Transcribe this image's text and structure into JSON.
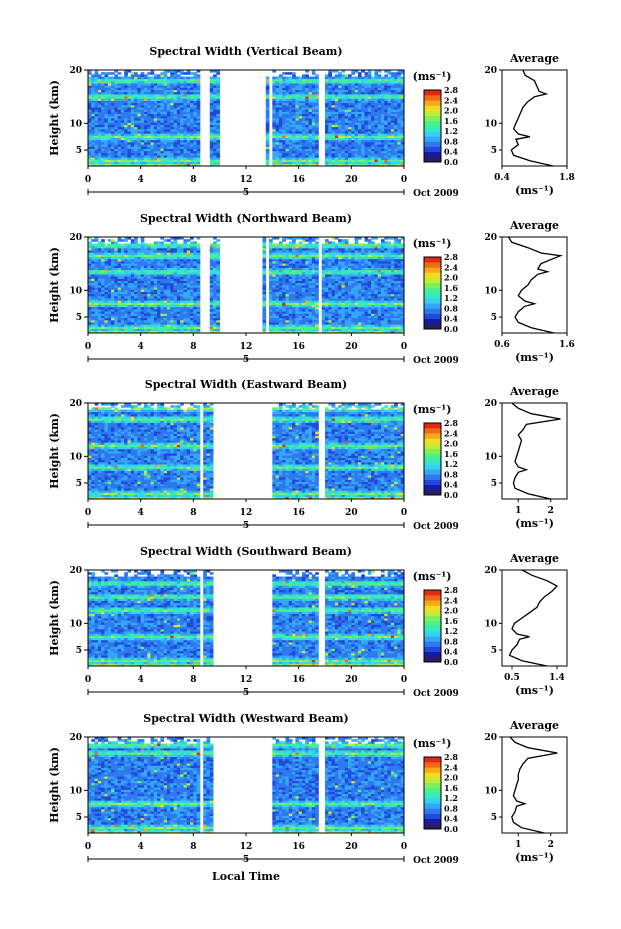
{
  "figure": {
    "colors": {
      "scale": [
        "#2a1f5c",
        "#1a1aa8",
        "#1f4ad8",
        "#2e78f0",
        "#34a8f6",
        "#35d2ee",
        "#37e8c0",
        "#4af090",
        "#7ef05a",
        "#c2ec3a",
        "#f0dc22",
        "#f8a818",
        "#f26a18",
        "#e02a14"
      ],
      "no_data": "#ffffff",
      "line": "#000000"
    },
    "x_axis": {
      "ticks": [
        "0",
        "4",
        "8",
        "12",
        "16",
        "20",
        "0"
      ],
      "day_label": "5",
      "date_label": "Oct 2009",
      "xlabel": "Local Time"
    },
    "colorbar": {
      "unit": "(ms⁻¹)",
      "ticks": [
        "2.8",
        "2.4",
        "2.0",
        "1.6",
        "1.2",
        "0.8",
        "0.4",
        "0.0"
      ]
    },
    "average": {
      "title": "Average",
      "xlabel": "(ms⁻¹)"
    }
  },
  "chart_data": [
    {
      "type": "heatmap",
      "title": "Spectral Width (Vertical Beam)",
      "ylabel": "Height (km)",
      "xlim": [
        0,
        24
      ],
      "ylim": [
        2,
        20
      ],
      "y_ticks": [
        "20",
        "10",
        "5"
      ],
      "missing_intervals_hours": [
        [
          8.6,
          9.3
        ],
        [
          10.1,
          13.5
        ],
        [
          13.7,
          14.1
        ],
        [
          17.6,
          17.9
        ]
      ],
      "enhanced_layers_km": [
        3.0,
        7.5,
        15.0,
        18.0
      ],
      "average_profile": {
        "title": "Average",
        "x_ticks": [
          "0.4",
          "1.8"
        ],
        "xlim": [
          0.4,
          1.8
        ],
        "ylim": [
          2,
          20
        ],
        "y_ticks": [
          "20",
          "10",
          "5"
        ],
        "height_km": [
          2,
          3,
          4,
          5,
          6,
          7,
          7.5,
          8,
          9,
          10,
          11,
          12,
          13,
          14,
          15,
          15.5,
          16,
          17,
          18,
          19,
          20
        ],
        "value": [
          1.5,
          1.0,
          0.65,
          0.6,
          0.75,
          0.7,
          1.0,
          0.75,
          0.65,
          0.7,
          0.75,
          0.8,
          0.85,
          0.95,
          1.1,
          1.35,
          1.2,
          1.15,
          1.1,
          0.9,
          0.85
        ]
      }
    },
    {
      "type": "heatmap",
      "title": "Spectral Width (Northward Beam)",
      "ylabel": "Height (km)",
      "xlim": [
        0,
        24
      ],
      "ylim": [
        2,
        20
      ],
      "y_ticks": [
        "20",
        "10",
        "5"
      ],
      "missing_intervals_hours": [
        [
          8.6,
          9.3
        ],
        [
          10.1,
          13.3
        ],
        [
          13.5,
          13.8
        ],
        [
          17.5,
          17.8
        ]
      ],
      "enhanced_layers_km": [
        3.0,
        7.5,
        13.5,
        16.5,
        18.5
      ],
      "average_profile": {
        "title": "Average",
        "x_ticks": [
          "0.6",
          "1.6"
        ],
        "xlim": [
          0.6,
          1.6
        ],
        "ylim": [
          2,
          20
        ],
        "y_ticks": [
          "20",
          "10",
          "5"
        ],
        "height_km": [
          2,
          3,
          4,
          5,
          6,
          7,
          7.5,
          8,
          9,
          10,
          11,
          12,
          13,
          13.5,
          14,
          15,
          16,
          16.5,
          17,
          18,
          19,
          20
        ],
        "value": [
          1.4,
          1.05,
          0.85,
          0.8,
          0.85,
          0.95,
          1.1,
          0.95,
          0.85,
          0.9,
          1.0,
          1.05,
          1.15,
          1.3,
          1.15,
          1.2,
          1.4,
          1.5,
          1.2,
          1.0,
          0.75,
          0.7
        ]
      }
    },
    {
      "type": "heatmap",
      "title": "Spectral Width (Eastward Beam)",
      "ylabel": "Height (km)",
      "xlim": [
        0,
        24
      ],
      "ylim": [
        2,
        20
      ],
      "y_ticks": [
        "20",
        "10",
        "5"
      ],
      "missing_intervals_hours": [
        [
          8.5,
          8.8
        ],
        [
          9.4,
          13.4
        ],
        [
          13.6,
          13.9
        ],
        [
          17.6,
          17.9
        ]
      ],
      "enhanced_layers_km": [
        3.0,
        8.0,
        12.0,
        17.0,
        19.0
      ],
      "average_profile": {
        "title": "Average",
        "x_ticks": [
          "1",
          "2"
        ],
        "xlim": [
          0.5,
          2.5
        ],
        "ylim": [
          2,
          20
        ],
        "y_ticks": [
          "20",
          "10",
          "5"
        ],
        "height_km": [
          2,
          3,
          4,
          5,
          6,
          7,
          7.5,
          8,
          9,
          10,
          11,
          12,
          13,
          14,
          15,
          16,
          17,
          18,
          19,
          20
        ],
        "value": [
          2.0,
          1.3,
          0.9,
          0.85,
          0.9,
          1.0,
          1.25,
          1.0,
          0.9,
          0.95,
          1.0,
          1.05,
          1.1,
          1.0,
          1.15,
          1.25,
          2.3,
          1.4,
          1.0,
          0.8
        ]
      }
    },
    {
      "type": "heatmap",
      "title": "Spectral Width (Southward Beam)",
      "ylabel": "Height (km)",
      "xlim": [
        0,
        24
      ],
      "ylim": [
        2,
        20
      ],
      "y_ticks": [
        "20",
        "10",
        "5"
      ],
      "missing_intervals_hours": [
        [
          8.5,
          8.8
        ],
        [
          9.4,
          13.4
        ],
        [
          13.6,
          13.9
        ],
        [
          17.6,
          17.9
        ]
      ],
      "enhanced_layers_km": [
        3.0,
        7.5,
        12.5,
        15.0,
        17.5
      ],
      "average_profile": {
        "title": "Average",
        "x_ticks": [
          "0.5",
          "1.4"
        ],
        "xlim": [
          0.3,
          1.6
        ],
        "ylim": [
          2,
          20
        ],
        "y_ticks": [
          "20",
          "10",
          "5"
        ],
        "height_km": [
          2,
          3,
          4,
          5,
          6,
          7,
          7.5,
          8,
          9,
          10,
          11,
          12,
          13,
          14,
          15,
          16,
          17,
          18,
          19,
          20
        ],
        "value": [
          1.2,
          0.7,
          0.45,
          0.5,
          0.6,
          0.65,
          0.85,
          0.6,
          0.5,
          0.55,
          0.7,
          0.85,
          1.0,
          1.05,
          1.15,
          1.3,
          1.4,
          1.2,
          0.9,
          0.7
        ]
      }
    },
    {
      "type": "heatmap",
      "title": "Spectral Width (Westward Beam)",
      "ylabel": "Height (km)",
      "xlim": [
        0,
        24
      ],
      "ylim": [
        2,
        20
      ],
      "y_ticks": [
        "20",
        "10",
        "5"
      ],
      "missing_intervals_hours": [
        [
          8.5,
          8.8
        ],
        [
          9.4,
          13.4
        ],
        [
          13.6,
          13.9
        ],
        [
          17.6,
          17.9
        ]
      ],
      "enhanced_layers_km": [
        3.0,
        7.5,
        17.0,
        18.5
      ],
      "average_profile": {
        "title": "Average",
        "x_ticks": [
          "1",
          "2"
        ],
        "xlim": [
          0.5,
          2.5
        ],
        "ylim": [
          2,
          20
        ],
        "y_ticks": [
          "20",
          "10",
          "5"
        ],
        "height_km": [
          2,
          3,
          4,
          5,
          6,
          7,
          7.5,
          8,
          9,
          10,
          11,
          12,
          13,
          14,
          15,
          16,
          17,
          18,
          19,
          20
        ],
        "value": [
          1.8,
          1.1,
          0.85,
          0.8,
          0.9,
          0.95,
          1.2,
          0.95,
          0.85,
          0.9,
          0.95,
          1.0,
          1.0,
          1.05,
          1.15,
          1.3,
          2.2,
          1.3,
          0.9,
          0.75
        ]
      }
    }
  ]
}
